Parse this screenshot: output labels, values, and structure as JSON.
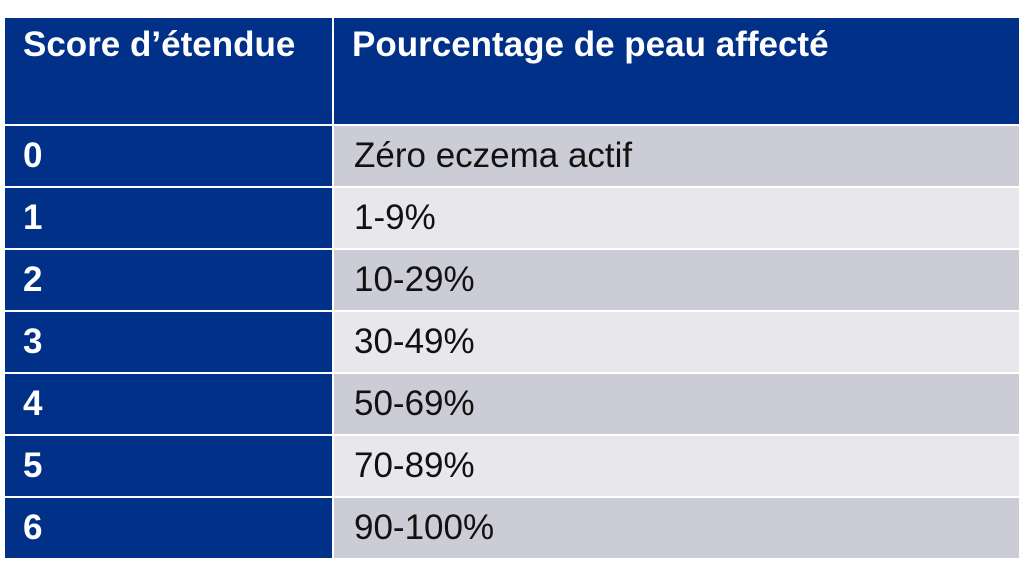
{
  "table": {
    "headers": {
      "score": "Score d’étendue",
      "percentage": "Pourcentage de peau affecté"
    },
    "rows": [
      {
        "score": "0",
        "percentage": "Zéro eczema actif"
      },
      {
        "score": "1",
        "percentage": "1-9%"
      },
      {
        "score": "2",
        "percentage": "10-29%"
      },
      {
        "score": "3",
        "percentage": "30-49%"
      },
      {
        "score": "4",
        "percentage": "50-69%"
      },
      {
        "score": "5",
        "percentage": "70-89%"
      },
      {
        "score": "6",
        "percentage": "90-100%"
      }
    ]
  },
  "colors": {
    "header_bg": "#003087",
    "score_cell_bg": "#003087",
    "row_odd_bg": "#ccccd6",
    "row_even_bg": "#e8e8ec",
    "header_text": "#ffffff",
    "body_text": "#111111"
  }
}
